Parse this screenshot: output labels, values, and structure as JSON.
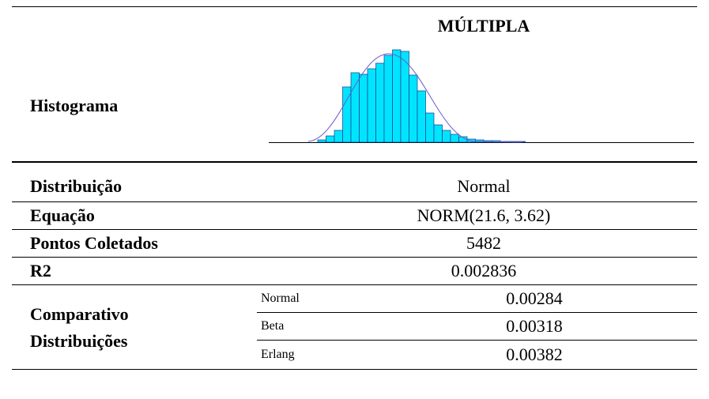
{
  "header": {
    "title": "MÚLTIPLA"
  },
  "histogram": {
    "label": "Histograma",
    "counts": [
      3,
      8,
      15,
      70,
      88,
      86,
      93,
      100,
      110,
      117,
      115,
      85,
      65,
      37,
      22,
      15,
      10,
      7,
      4,
      3,
      2,
      2,
      1,
      1,
      1
    ]
  },
  "rows": [
    {
      "label": "Distribuição",
      "value": "Normal"
    },
    {
      "label": "Equação",
      "value": "NORM(21.6, 3.62)"
    },
    {
      "label": "Pontos Coletados",
      "value": "5482"
    },
    {
      "label": "R2",
      "value": "0.002836"
    }
  ],
  "comparison": {
    "label": [
      "Comparativo",
      "Distribuições"
    ],
    "items": [
      {
        "name": "Normal",
        "value": "0.00284"
      },
      {
        "name": "Beta",
        "value": "0.00318"
      },
      {
        "name": "Erlang",
        "value": "0.00382"
      }
    ]
  }
}
